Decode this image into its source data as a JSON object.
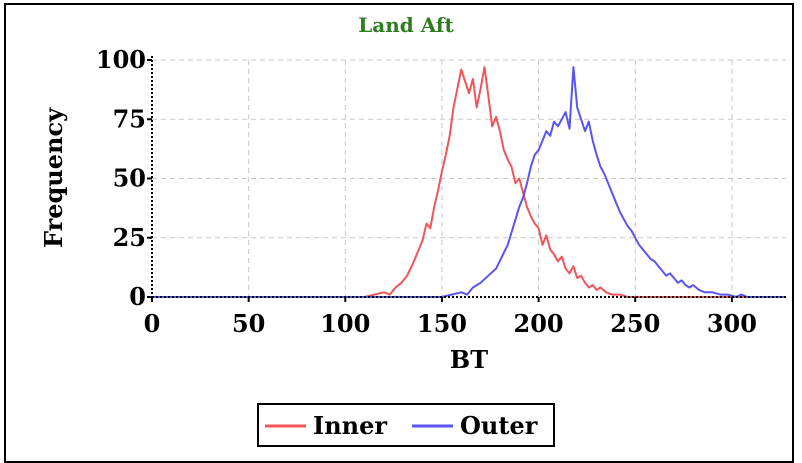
{
  "chart_data": {
    "type": "line",
    "title": "Land Aft",
    "title_color": "#2e7d1e",
    "xlabel": "BT",
    "ylabel": "Frequency",
    "xlim": [
      0,
      328
    ],
    "ylim": [
      0,
      100
    ],
    "xticks": [
      0,
      50,
      100,
      150,
      200,
      250,
      300
    ],
    "yticks": [
      0,
      25,
      50,
      75,
      100
    ],
    "grid": true,
    "legend_position": "bottom-center",
    "series": [
      {
        "name": "Inner",
        "color": "#f0555a",
        "points": [
          [
            0,
            0
          ],
          [
            100,
            0
          ],
          [
            110,
            0
          ],
          [
            115,
            1
          ],
          [
            120,
            2
          ],
          [
            123,
            1
          ],
          [
            126,
            4
          ],
          [
            129,
            6
          ],
          [
            132,
            9
          ],
          [
            135,
            14
          ],
          [
            138,
            20
          ],
          [
            140,
            24
          ],
          [
            142,
            31
          ],
          [
            144,
            29
          ],
          [
            146,
            38
          ],
          [
            148,
            45
          ],
          [
            150,
            53
          ],
          [
            152,
            60
          ],
          [
            154,
            68
          ],
          [
            156,
            80
          ],
          [
            158,
            88
          ],
          [
            160,
            96
          ],
          [
            162,
            91
          ],
          [
            164,
            86
          ],
          [
            166,
            92
          ],
          [
            168,
            80
          ],
          [
            170,
            88
          ],
          [
            172,
            97
          ],
          [
            174,
            85
          ],
          [
            176,
            72
          ],
          [
            178,
            76
          ],
          [
            180,
            70
          ],
          [
            182,
            62
          ],
          [
            184,
            58
          ],
          [
            186,
            55
          ],
          [
            188,
            48
          ],
          [
            190,
            50
          ],
          [
            192,
            44
          ],
          [
            194,
            38
          ],
          [
            196,
            34
          ],
          [
            198,
            31
          ],
          [
            200,
            29
          ],
          [
            202,
            22
          ],
          [
            204,
            26
          ],
          [
            206,
            20
          ],
          [
            208,
            18
          ],
          [
            210,
            15
          ],
          [
            212,
            17
          ],
          [
            214,
            12
          ],
          [
            216,
            10
          ],
          [
            218,
            13
          ],
          [
            220,
            8
          ],
          [
            222,
            9
          ],
          [
            224,
            6
          ],
          [
            226,
            4
          ],
          [
            228,
            5
          ],
          [
            230,
            3
          ],
          [
            232,
            4
          ],
          [
            235,
            2
          ],
          [
            238,
            1
          ],
          [
            242,
            1
          ],
          [
            246,
            0
          ],
          [
            250,
            0
          ],
          [
            260,
            0
          ],
          [
            328,
            0
          ]
        ]
      },
      {
        "name": "Outer",
        "color": "#5a55f0",
        "points": [
          [
            0,
            0
          ],
          [
            140,
            0
          ],
          [
            150,
            0
          ],
          [
            155,
            1
          ],
          [
            160,
            2
          ],
          [
            163,
            1
          ],
          [
            166,
            4
          ],
          [
            170,
            6
          ],
          [
            174,
            9
          ],
          [
            178,
            12
          ],
          [
            181,
            17
          ],
          [
            184,
            22
          ],
          [
            187,
            30
          ],
          [
            190,
            38
          ],
          [
            192,
            42
          ],
          [
            194,
            48
          ],
          [
            196,
            55
          ],
          [
            198,
            60
          ],
          [
            200,
            62
          ],
          [
            202,
            66
          ],
          [
            204,
            70
          ],
          [
            206,
            68
          ],
          [
            208,
            74
          ],
          [
            210,
            72
          ],
          [
            212,
            75
          ],
          [
            214,
            78
          ],
          [
            216,
            71
          ],
          [
            218,
            97
          ],
          [
            220,
            80
          ],
          [
            222,
            75
          ],
          [
            224,
            70
          ],
          [
            226,
            74
          ],
          [
            228,
            66
          ],
          [
            230,
            60
          ],
          [
            232,
            55
          ],
          [
            234,
            52
          ],
          [
            236,
            48
          ],
          [
            238,
            44
          ],
          [
            240,
            40
          ],
          [
            242,
            36
          ],
          [
            244,
            33
          ],
          [
            246,
            30
          ],
          [
            248,
            28
          ],
          [
            250,
            25
          ],
          [
            252,
            22
          ],
          [
            254,
            20
          ],
          [
            256,
            18
          ],
          [
            258,
            16
          ],
          [
            260,
            15
          ],
          [
            262,
            13
          ],
          [
            264,
            11
          ],
          [
            266,
            9
          ],
          [
            268,
            10
          ],
          [
            270,
            8
          ],
          [
            272,
            6
          ],
          [
            274,
            7
          ],
          [
            276,
            5
          ],
          [
            278,
            4
          ],
          [
            280,
            5
          ],
          [
            283,
            3
          ],
          [
            286,
            2
          ],
          [
            290,
            2
          ],
          [
            294,
            1
          ],
          [
            298,
            1
          ],
          [
            302,
            0
          ],
          [
            305,
            1
          ],
          [
            308,
            0
          ],
          [
            312,
            0
          ],
          [
            328,
            0
          ]
        ]
      }
    ]
  }
}
